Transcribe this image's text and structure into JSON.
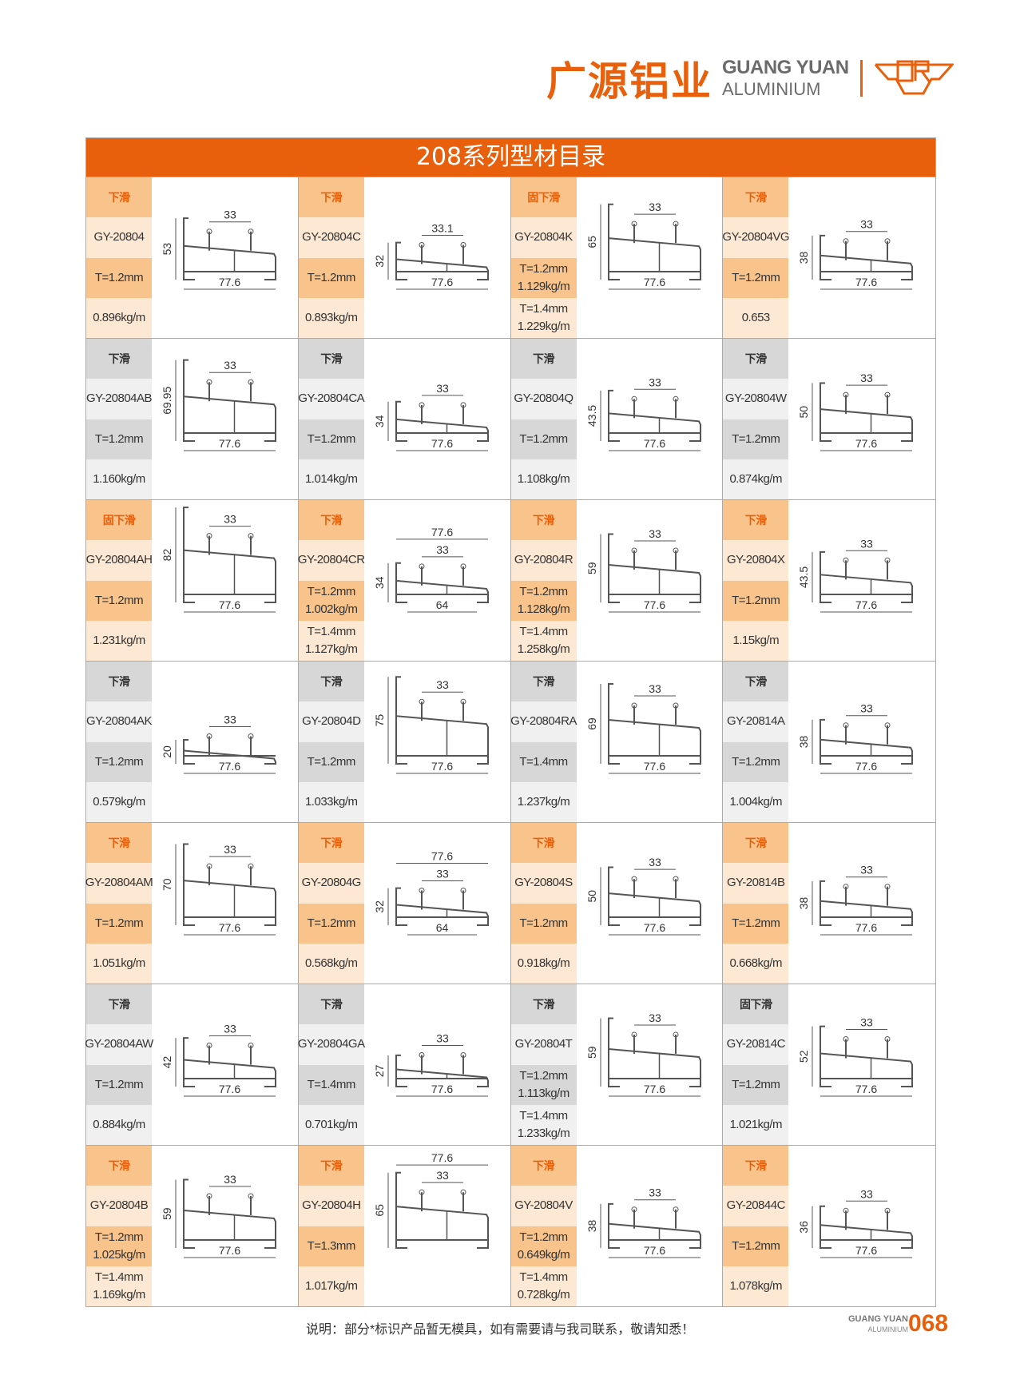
{
  "brand": {
    "cn": "广源铝业",
    "en_line1": "GUANG YUAN",
    "en_line2": "ALUMINIUM",
    "accent": "#e8600c",
    "logo_text": "GR"
  },
  "title": "208系列型材目录",
  "rows": [
    {
      "style": "orange",
      "cells": [
        {
          "type": "下滑",
          "code": "GY-20804",
          "spec1": [
            "T=1.2mm"
          ],
          "spec2": [
            "0.896kg/m"
          ],
          "dims": {
            "h": "53",
            "top": "33",
            "bottom": "77.6"
          }
        },
        {
          "type": "下滑",
          "code": "GY-20804C",
          "spec1": [
            "T=1.2mm"
          ],
          "spec2": [
            "0.893kg/m"
          ],
          "dims": {
            "h": "32",
            "top": "33.1",
            "bottom": "77.6"
          }
        },
        {
          "type": "固下滑",
          "code": "GY-20804K",
          "spec1": [
            "T=1.2mm",
            "1.129kg/m"
          ],
          "spec2": [
            "T=1.4mm",
            "1.229kg/m"
          ],
          "dims": {
            "h": "65",
            "top": "33",
            "bottom": "77.6"
          }
        },
        {
          "type": "下滑",
          "code": "GY-20804VG",
          "spec1": [
            "T=1.2mm"
          ],
          "spec2": [
            "0.653"
          ],
          "dims": {
            "h": "38",
            "top": "33",
            "bottom": "77.6"
          }
        }
      ]
    },
    {
      "style": "gray",
      "cells": [
        {
          "type": "下滑",
          "code": "GY-20804AB",
          "spec1": [
            "T=1.2mm"
          ],
          "spec2": [
            "1.160kg/m"
          ],
          "dims": {
            "h": "69.95",
            "top": "33",
            "bottom": "77.6"
          }
        },
        {
          "type": "下滑",
          "code": "GY-20804CA",
          "spec1": [
            "T=1.2mm"
          ],
          "spec2": [
            "1.014kg/m"
          ],
          "dims": {
            "h": "34",
            "top": "33",
            "bottom": "77.6"
          }
        },
        {
          "type": "下滑",
          "code": "GY-20804Q",
          "spec1": [
            "T=1.2mm"
          ],
          "spec2": [
            "1.108kg/m"
          ],
          "dims": {
            "h": "43.5",
            "top": "33",
            "bottom": "77.6"
          }
        },
        {
          "type": "下滑",
          "code": "GY-20804W",
          "spec1": [
            "T=1.2mm"
          ],
          "spec2": [
            "0.874kg/m"
          ],
          "dims": {
            "h": "50",
            "top": "33",
            "bottom": "77.6"
          }
        }
      ]
    },
    {
      "style": "orange",
      "cells": [
        {
          "type": "固下滑",
          "code": "GY-20804AH",
          "spec1": [
            "T=1.2mm"
          ],
          "spec2": [
            "1.231kg/m"
          ],
          "dims": {
            "h": "82",
            "top": "33",
            "bottom": "77.6"
          }
        },
        {
          "type": "下滑",
          "code": "GY-20804CR",
          "spec1": [
            "T=1.2mm",
            "1.002kg/m"
          ],
          "spec2": [
            "T=1.4mm",
            "1.127kg/m"
          ],
          "dims": {
            "h": "34",
            "top": "77.6",
            "mid": "33",
            "bottom": "64"
          }
        },
        {
          "type": "下滑",
          "code": "GY-20804R",
          "spec1": [
            "T=1.2mm",
            "1.128kg/m"
          ],
          "spec2": [
            "T=1.4mm",
            "1.258kg/m"
          ],
          "dims": {
            "h": "59",
            "top": "33",
            "bottom": "77.6"
          }
        },
        {
          "type": "下滑",
          "code": "GY-20804X",
          "spec1": [
            "T=1.2mm"
          ],
          "spec2": [
            "1.15kg/m"
          ],
          "dims": {
            "h": "43.5",
            "top": "33",
            "bottom": "77.6"
          }
        }
      ]
    },
    {
      "style": "gray",
      "cells": [
        {
          "type": "下滑",
          "code": "GY-20804AK",
          "spec1": [
            "T=1.2mm"
          ],
          "spec2": [
            "0.579kg/m"
          ],
          "dims": {
            "h": "20",
            "top": "33",
            "bottom": "77.6"
          }
        },
        {
          "type": "下滑",
          "code": "GY-20804D",
          "spec1": [
            "T=1.2mm"
          ],
          "spec2": [
            "1.033kg/m"
          ],
          "dims": {
            "h": "75",
            "top": "33",
            "bottom": "77.6"
          }
        },
        {
          "type": "下滑",
          "code": "GY-20804RA",
          "spec1": [
            "T=1.4mm"
          ],
          "spec2": [
            "1.237kg/m"
          ],
          "dims": {
            "h": "69",
            "top": "33",
            "bottom": "77.6"
          }
        },
        {
          "type": "下滑",
          "code": "GY-20814A",
          "spec1": [
            "T=1.2mm"
          ],
          "spec2": [
            "1.004kg/m"
          ],
          "dims": {
            "h": "38",
            "top": "33",
            "bottom": "77.6"
          }
        }
      ]
    },
    {
      "style": "orange",
      "cells": [
        {
          "type": "下滑",
          "code": "GY-20804AM",
          "spec1": [
            "T=1.2mm"
          ],
          "spec2": [
            "1.051kg/m"
          ],
          "dims": {
            "h": "70",
            "top": "33",
            "bottom": "77.6"
          }
        },
        {
          "type": "下滑",
          "code": "GY-20804G",
          "spec1": [
            "T=1.2mm"
          ],
          "spec2": [
            "0.568kg/m"
          ],
          "dims": {
            "h": "32",
            "top": "77.6",
            "mid": "33",
            "bottom": "64"
          }
        },
        {
          "type": "下滑",
          "code": "GY-20804S",
          "spec1": [
            "T=1.2mm"
          ],
          "spec2": [
            "0.918kg/m"
          ],
          "dims": {
            "h": "50",
            "top": "33",
            "bottom": "77.6"
          }
        },
        {
          "type": "下滑",
          "code": "GY-20814B",
          "spec1": [
            "T=1.2mm"
          ],
          "spec2": [
            "0.668kg/m"
          ],
          "dims": {
            "h": "38",
            "top": "33",
            "bottom": "77.6"
          }
        }
      ]
    },
    {
      "style": "gray",
      "cells": [
        {
          "type": "下滑",
          "code": "GY-20804AW",
          "spec1": [
            "T=1.2mm"
          ],
          "spec2": [
            "0.884kg/m"
          ],
          "dims": {
            "h": "42",
            "top": "33",
            "bottom": "77.6"
          }
        },
        {
          "type": "下滑",
          "code": "GY-20804GA",
          "spec1": [
            "T=1.4mm"
          ],
          "spec2": [
            "0.701kg/m"
          ],
          "dims": {
            "h": "27",
            "top": "33",
            "bottom": "77.6"
          }
        },
        {
          "type": "下滑",
          "code": "GY-20804T",
          "spec1": [
            "T=1.2mm",
            "1.113kg/m"
          ],
          "spec2": [
            "T=1.4mm",
            "1.233kg/m"
          ],
          "dims": {
            "h": "59",
            "top": "33",
            "bottom": "77.6"
          }
        },
        {
          "type": "固下滑",
          "code": "GY-20814C",
          "spec1": [
            "T=1.2mm"
          ],
          "spec2": [
            "1.021kg/m"
          ],
          "dims": {
            "h": "52",
            "top": "33",
            "bottom": "77.6"
          }
        }
      ]
    },
    {
      "style": "orange",
      "cells": [
        {
          "type": "下滑",
          "code": "GY-20804B",
          "spec1": [
            "T=1.2mm",
            "1.025kg/m"
          ],
          "spec2": [
            "T=1.4mm",
            "1.169kg/m"
          ],
          "dims": {
            "h": "59",
            "top": "33",
            "bottom": "77.6"
          }
        },
        {
          "type": "下滑",
          "code": "GY-20804H",
          "spec1": [
            "T=1.3mm"
          ],
          "spec2": [
            "1.017kg/m"
          ],
          "dims": {
            "h": "65",
            "top": "77.6",
            "mid": "33"
          }
        },
        {
          "type": "下滑",
          "code": "GY-20804V",
          "spec1": [
            "T=1.2mm",
            "0.649kg/m"
          ],
          "spec2": [
            "T=1.4mm",
            "0.728kg/m"
          ],
          "dims": {
            "h": "38",
            "top": "33",
            "bottom": "77.6"
          }
        },
        {
          "type": "下滑",
          "code": "GY-20844C",
          "spec1": [
            "T=1.2mm"
          ],
          "spec2": [
            "1.078kg/m"
          ],
          "dims": {
            "h": "36",
            "top": "33",
            "bottom": "77.6"
          }
        }
      ]
    }
  ],
  "footer": {
    "note": "说明：部分*标识产品暂无模具，如有需要请与我司联系，敬请知悉！",
    "brand_line1": "GUANG YUAN",
    "brand_line2": "ALUMINIUM",
    "page_number": "068"
  }
}
